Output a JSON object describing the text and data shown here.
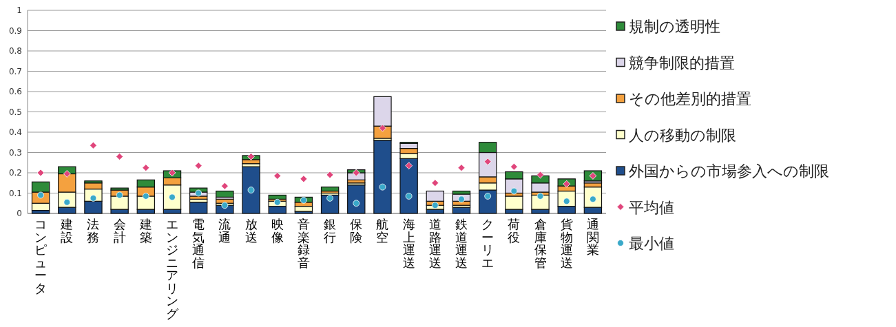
{
  "chart_data": {
    "type": "bar",
    "stacked": true,
    "categories": [
      "コンピュータ",
      "建設",
      "法務",
      "会計",
      "建築",
      "エンジニアリング",
      "電気通信",
      "流通",
      "放送",
      "映像",
      "音楽録音",
      "銀行",
      "保険",
      "航空",
      "海上運送",
      "道路運送",
      "鉄道運送",
      "クーリエ",
      "荷役",
      "倉庫保管",
      "貨物運送",
      "通関業"
    ],
    "series": [
      {
        "name": "外国からの市場参入への制限",
        "color": "#1f4e8c",
        "values": [
          0.015,
          0.03,
          0.06,
          0.02,
          0.02,
          0.02,
          0.055,
          0.04,
          0.23,
          0.035,
          0.01,
          0.09,
          0.14,
          0.36,
          0.27,
          0.02,
          0.03,
          0.115,
          0.02,
          0.02,
          0.035,
          0.03
        ]
      },
      {
        "name": "人の移動の制限",
        "color": "#ffffcc",
        "values": [
          0.035,
          0.075,
          0.06,
          0.065,
          0.065,
          0.12,
          0.015,
          0.01,
          0.015,
          0.025,
          0.025,
          0.01,
          0.01,
          0.01,
          0.025,
          0.02,
          0.01,
          0.035,
          0.065,
          0.07,
          0.075,
          0.1
        ]
      },
      {
        "name": "その他差別的措置",
        "color": "#f4a13f",
        "values": [
          0.055,
          0.09,
          0.03,
          0.03,
          0.045,
          0.035,
          0.015,
          0.02,
          0.02,
          0.01,
          0.02,
          0.01,
          0.015,
          0.06,
          0.025,
          0.02,
          0.02,
          0.03,
          0.015,
          0.015,
          0.025,
          0.02
        ]
      },
      {
        "name": "競争制限的措置",
        "color": "#dcd6ea",
        "values": [
          0,
          0,
          0,
          0,
          0,
          0,
          0.02,
          0.01,
          0,
          0,
          0,
          0,
          0.035,
          0.145,
          0.025,
          0.05,
          0.035,
          0.12,
          0.07,
          0.045,
          0,
          0.01
        ]
      },
      {
        "name": "規制の透明性",
        "color": "#2e8b3a",
        "values": [
          0.05,
          0.035,
          0.01,
          0.01,
          0.035,
          0.035,
          0.02,
          0.03,
          0.02,
          0.02,
          0.025,
          0.02,
          0.015,
          0,
          0.005,
          0,
          0.015,
          0.05,
          0.035,
          0.035,
          0.035,
          0.05
        ]
      },
      {
        "name": "平均値",
        "type": "scatter",
        "marker": "diamond",
        "color": "#e0457b",
        "values": [
          0.2,
          0.195,
          0.335,
          0.28,
          0.225,
          0.2,
          0.235,
          0.135,
          0.28,
          0.185,
          0.17,
          0.19,
          0.2,
          0.42,
          0.235,
          0.15,
          0.225,
          0.255,
          0.23,
          0.19,
          0.145,
          0.185
        ]
      },
      {
        "name": "最小値",
        "type": "scatter",
        "marker": "circle",
        "color": "#3aa9c9",
        "values": [
          0.09,
          0.055,
          0.075,
          0.09,
          0.085,
          0.08,
          0.1,
          0.04,
          0.115,
          0.055,
          0.065,
          0.075,
          0.05,
          0.13,
          0.085,
          0.04,
          0.07,
          0.085,
          0.11,
          0.085,
          0.06,
          0.07
        ]
      }
    ],
    "ylim": [
      0,
      1
    ],
    "yticks": [
      0,
      0.1,
      0.2,
      0.3,
      0.4,
      0.5,
      0.6,
      0.7,
      0.8,
      0.9,
      1
    ],
    "grid": "y",
    "legend": "right"
  }
}
